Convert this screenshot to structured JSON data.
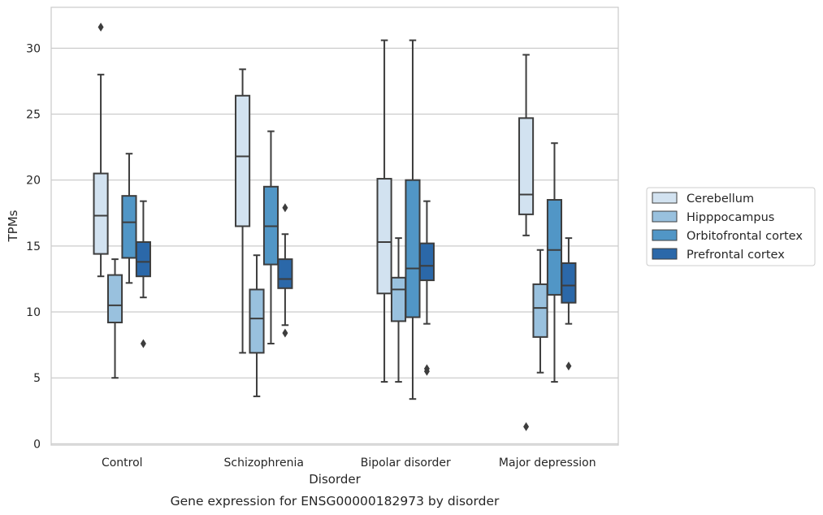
{
  "chart_data": {
    "type": "boxplot",
    "caption": "Gene expression for ENSG00000182973 by disorder",
    "xlabel": "Disorder",
    "ylabel": "TPMs",
    "ylim": [
      -0.1,
      33.1
    ],
    "yticks": [
      0,
      5,
      10,
      15,
      20,
      25,
      30
    ],
    "grid": true,
    "legend_position": "right",
    "categories": [
      "Control",
      "Schizophrenia",
      "Bipolar disorder",
      "Major depression"
    ],
    "series": [
      {
        "name": "Cerebellum",
        "color": "#d2e2f0",
        "boxes": [
          {
            "whisker_low": 12.7,
            "q1": 14.4,
            "median": 17.3,
            "q3": 20.5,
            "whisker_high": 28.0,
            "outliers": [
              31.6
            ]
          },
          {
            "whisker_low": 6.9,
            "q1": 16.5,
            "median": 21.8,
            "q3": 26.4,
            "whisker_high": 28.4,
            "outliers": []
          },
          {
            "whisker_low": 4.7,
            "q1": 11.4,
            "median": 15.3,
            "q3": 20.1,
            "whisker_high": 30.6,
            "outliers": []
          },
          {
            "whisker_low": 15.8,
            "q1": 17.4,
            "median": 18.9,
            "q3": 24.7,
            "whisker_high": 29.5,
            "outliers": [
              1.3
            ]
          }
        ]
      },
      {
        "name": "Hipppocampus",
        "color": "#99c1de",
        "boxes": [
          {
            "whisker_low": 5.0,
            "q1": 9.2,
            "median": 10.5,
            "q3": 12.8,
            "whisker_high": 14.0,
            "outliers": []
          },
          {
            "whisker_low": 3.6,
            "q1": 6.9,
            "median": 9.5,
            "q3": 11.7,
            "whisker_high": 14.3,
            "outliers": []
          },
          {
            "whisker_low": 4.7,
            "q1": 9.3,
            "median": 11.7,
            "q3": 12.6,
            "whisker_high": 15.6,
            "outliers": []
          },
          {
            "whisker_low": 5.4,
            "q1": 8.1,
            "median": 10.3,
            "q3": 12.1,
            "whisker_high": 14.7,
            "outliers": []
          }
        ]
      },
      {
        "name": "Orbitofrontal cortex",
        "color": "#5196c6",
        "boxes": [
          {
            "whisker_low": 12.2,
            "q1": 14.1,
            "median": 16.8,
            "q3": 18.8,
            "whisker_high": 22.0,
            "outliers": []
          },
          {
            "whisker_low": 7.6,
            "q1": 13.6,
            "median": 16.5,
            "q3": 19.5,
            "whisker_high": 23.7,
            "outliers": []
          },
          {
            "whisker_low": 3.4,
            "q1": 9.6,
            "median": 13.3,
            "q3": 20.0,
            "whisker_high": 30.6,
            "outliers": []
          },
          {
            "whisker_low": 4.7,
            "q1": 11.3,
            "median": 14.7,
            "q3": 18.5,
            "whisker_high": 22.8,
            "outliers": []
          }
        ]
      },
      {
        "name": "Prefrontal cortex",
        "color": "#2b68a9",
        "boxes": [
          {
            "whisker_low": 11.1,
            "q1": 12.7,
            "median": 13.8,
            "q3": 15.3,
            "whisker_high": 18.4,
            "outliers": [
              7.6
            ]
          },
          {
            "whisker_low": 9.0,
            "q1": 11.8,
            "median": 12.5,
            "q3": 14.0,
            "whisker_high": 15.9,
            "outliers": [
              17.9,
              8.4
            ]
          },
          {
            "whisker_low": 9.1,
            "q1": 12.4,
            "median": 13.5,
            "q3": 15.2,
            "whisker_high": 18.4,
            "outliers": [
              5.7,
              5.5
            ]
          },
          {
            "whisker_low": 9.1,
            "q1": 10.7,
            "median": 12.0,
            "q3": 13.7,
            "whisker_high": 15.6,
            "outliers": [
              5.9
            ]
          }
        ]
      }
    ]
  }
}
